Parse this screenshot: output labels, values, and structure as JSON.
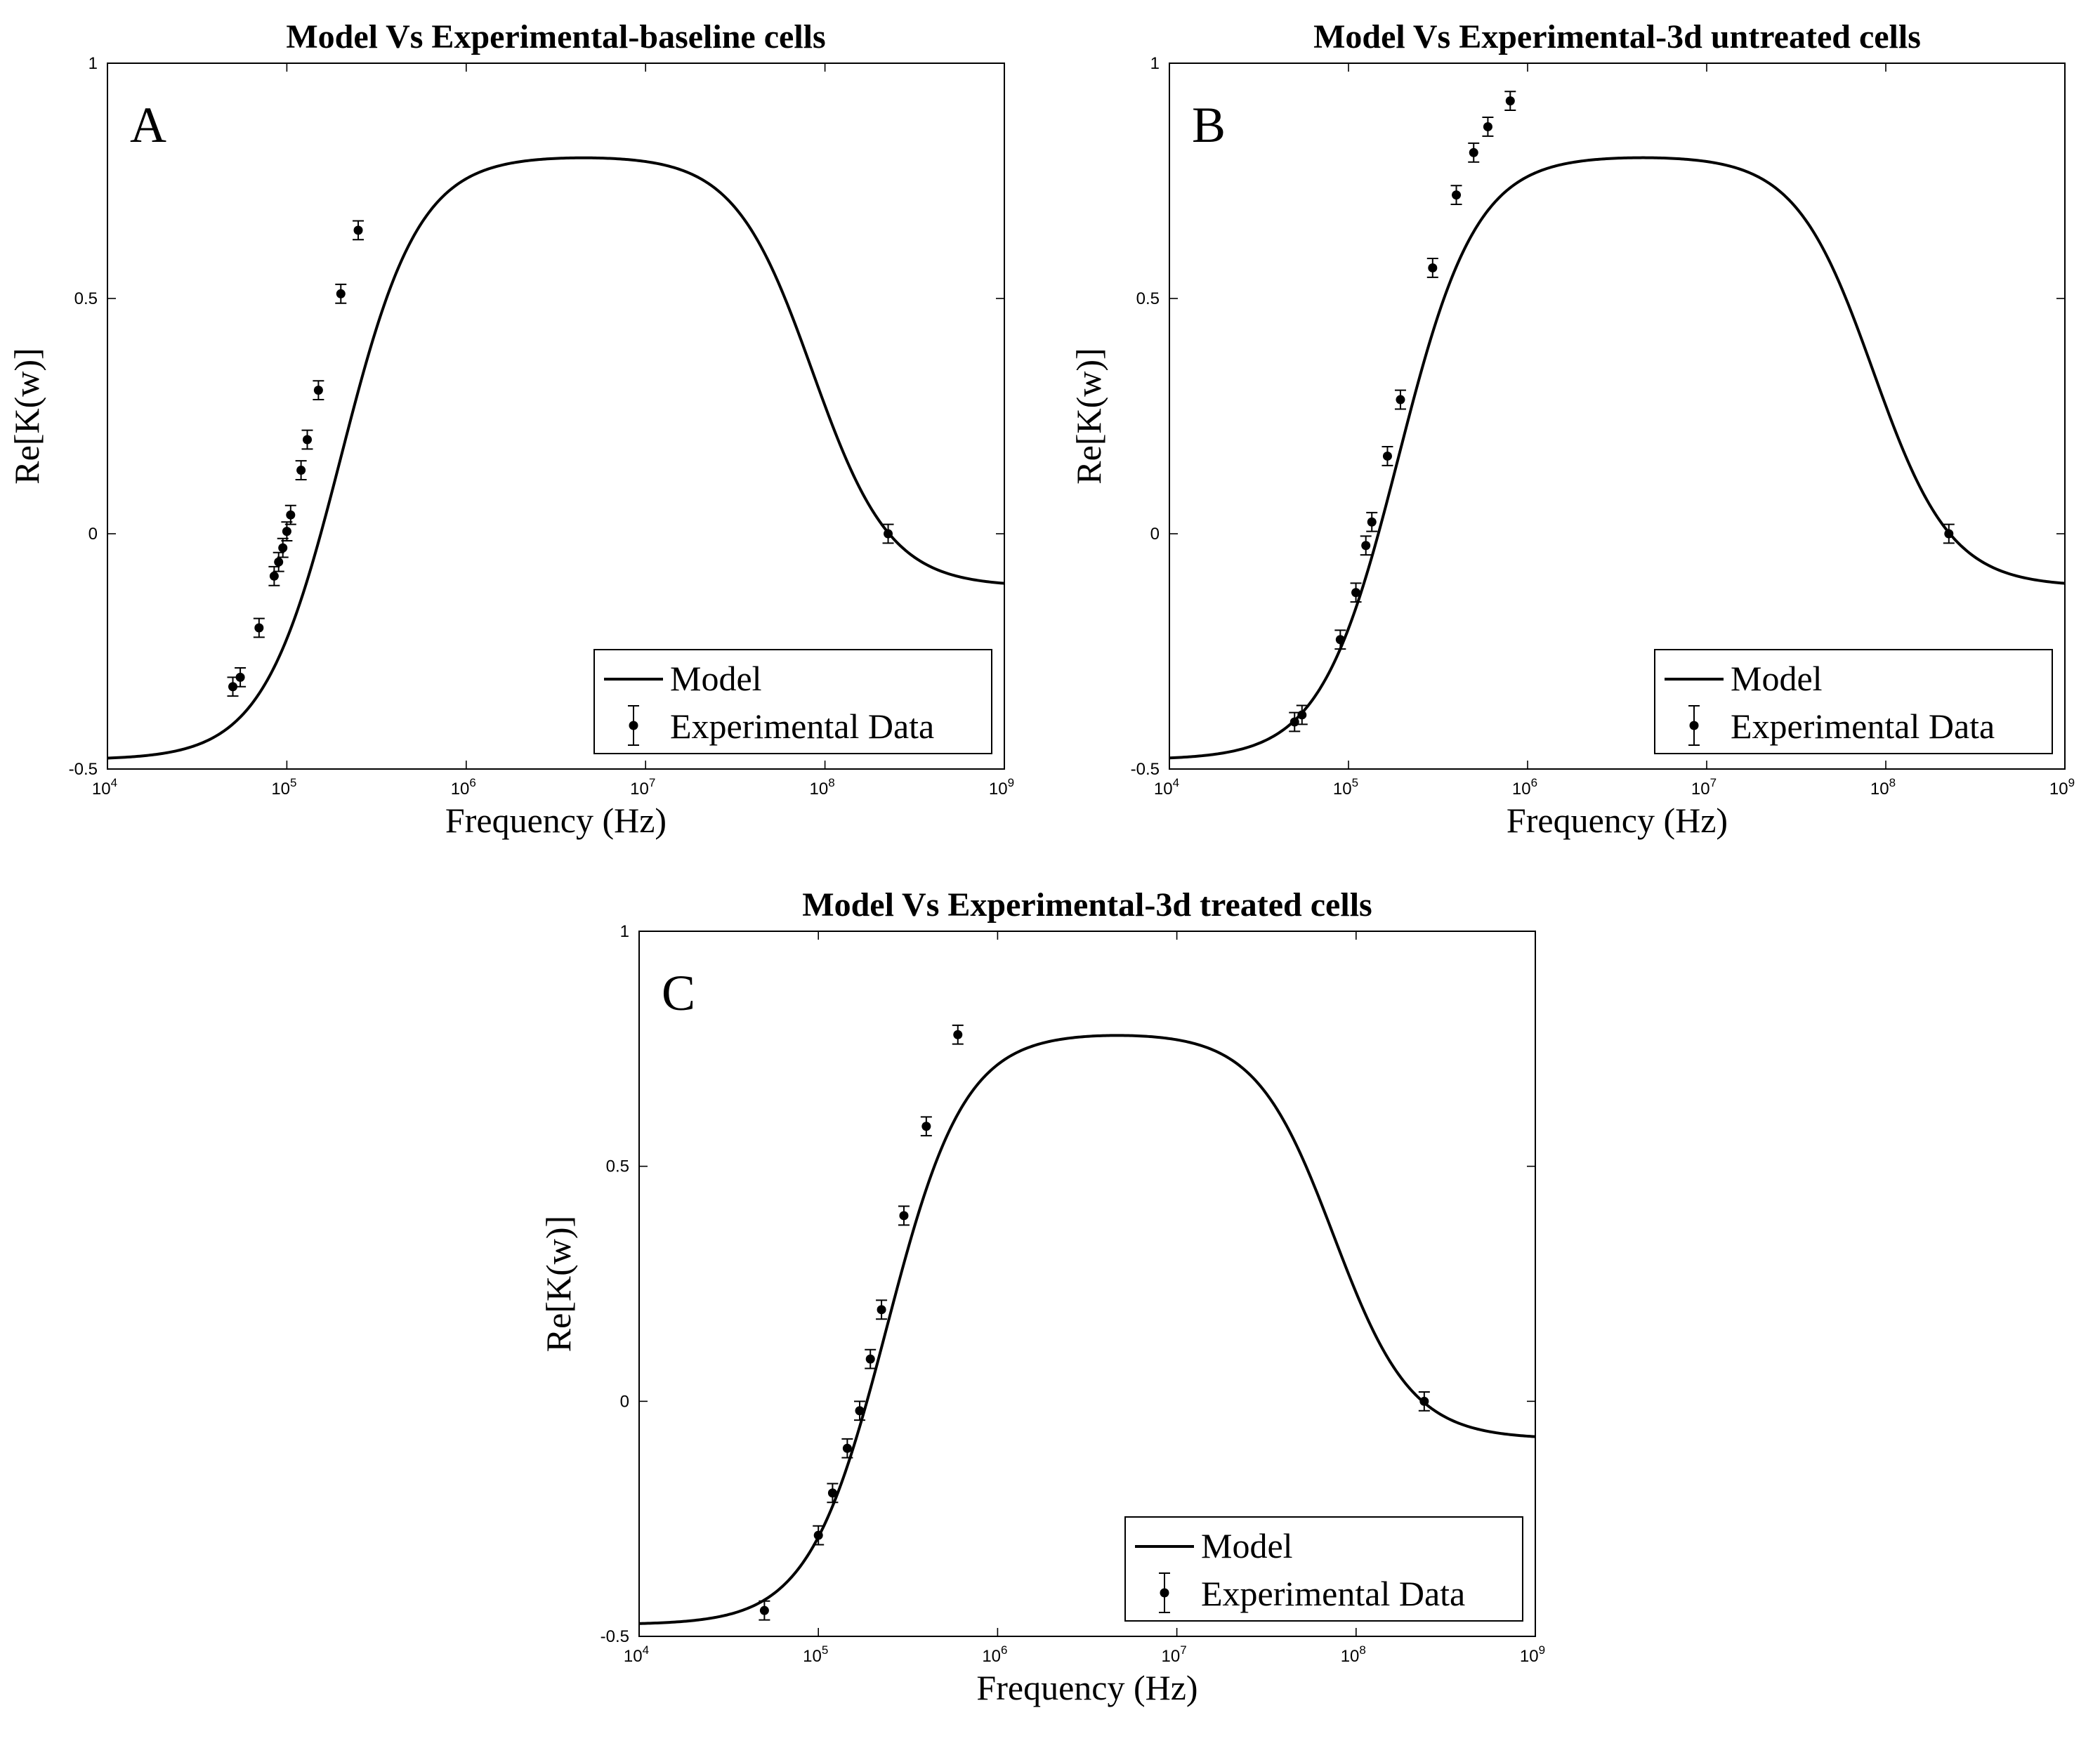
{
  "chart_data": [
    {
      "type": "scatter",
      "panel_label": "A",
      "title": "Model Vs Experimental-baseline cells",
      "xlabel": "Frequency (Hz)",
      "ylabel": "Re[K(w)]",
      "xscale": "log",
      "xlim": [
        10000,
        1000000000
      ],
      "ylim": [
        -0.5,
        1
      ],
      "yticks": [
        "-0.5",
        "0",
        "0.5",
        "1"
      ],
      "xtick_base": "10",
      "xtick_exponents": [
        "4",
        "5",
        "6",
        "7",
        "8",
        "9"
      ],
      "legend": {
        "position": "bottom-right",
        "entries": [
          "Model",
          "Experimental Data"
        ]
      },
      "model": {
        "low": -0.48,
        "high": 0.804,
        "f1": 200000,
        "f2": 85000000,
        "tail": -0.112,
        "n": 2
      },
      "series": [
        {
          "name": "Experimental Data",
          "error": 0.02,
          "x": [
            50000,
            55000,
            70000,
            85000,
            90000,
            95000,
            100000,
            105000,
            120000,
            130000,
            150000,
            200000,
            250000,
            225000000
          ],
          "values": [
            -0.325,
            -0.305,
            -0.2,
            -0.09,
            -0.06,
            -0.03,
            0.005,
            0.04,
            0.135,
            0.2,
            0.305,
            0.51,
            0.645,
            0.0
          ]
        }
      ]
    },
    {
      "type": "scatter",
      "panel_label": "B",
      "title": "Model Vs Experimental-3d untreated cells",
      "xlabel": "Frequency (Hz)",
      "ylabel": "Re[K(w)]",
      "xscale": "log",
      "xlim": [
        10000,
        1000000000
      ],
      "ylim": [
        -0.5,
        1
      ],
      "yticks": [
        "-0.5",
        "0",
        "0.5",
        "1"
      ],
      "xtick_base": "10",
      "xtick_exponents": [
        "4",
        "5",
        "6",
        "7",
        "8",
        "9"
      ],
      "legend": {
        "position": "bottom-right",
        "entries": [
          "Model",
          "Experimental Data"
        ]
      },
      "model": {
        "low": -0.48,
        "high": 0.804,
        "f1": 190000,
        "f2": 85000000,
        "tail": -0.112,
        "n": 2
      },
      "series": [
        {
          "name": "Experimental Data",
          "error": 0.02,
          "x": [
            50000,
            55000,
            90000,
            110000,
            125000,
            135000,
            165000,
            195000,
            295000,
            400000,
            500000,
            600000,
            800000,
            225000000
          ],
          "values": [
            -0.4,
            -0.385,
            -0.225,
            -0.125,
            -0.025,
            0.025,
            0.165,
            0.285,
            0.565,
            0.72,
            0.81,
            0.865,
            0.92,
            0.0
          ]
        }
      ]
    },
    {
      "type": "scatter",
      "panel_label": "C",
      "title": "Model Vs Experimental-3d treated cells",
      "xlabel": "Frequency (Hz)",
      "ylabel": "Re[K(w)]",
      "xscale": "log",
      "xlim": [
        10000,
        1000000000
      ],
      "ylim": [
        -0.5,
        1
      ],
      "yticks": [
        "-0.5",
        "0",
        "0.5",
        "1"
      ],
      "xtick_base": "10",
      "xtick_exponents": [
        "4",
        "5",
        "6",
        "7",
        "8",
        "9"
      ],
      "legend": {
        "position": "bottom-right",
        "entries": [
          "Model",
          "Experimental Data"
        ]
      },
      "model": {
        "low": -0.475,
        "high": 0.785,
        "f1": 240000,
        "f2": 75000000,
        "tail": -0.08,
        "n": 2
      },
      "series": [
        {
          "name": "Experimental Data",
          "error": 0.02,
          "x": [
            50000,
            100000,
            120000,
            145000,
            170000,
            195000,
            225000,
            300000,
            400000,
            600000,
            240000000
          ],
          "values": [
            -0.445,
            -0.285,
            -0.195,
            -0.1,
            -0.02,
            0.09,
            0.195,
            0.395,
            0.585,
            0.78,
            0.0
          ]
        }
      ]
    }
  ]
}
